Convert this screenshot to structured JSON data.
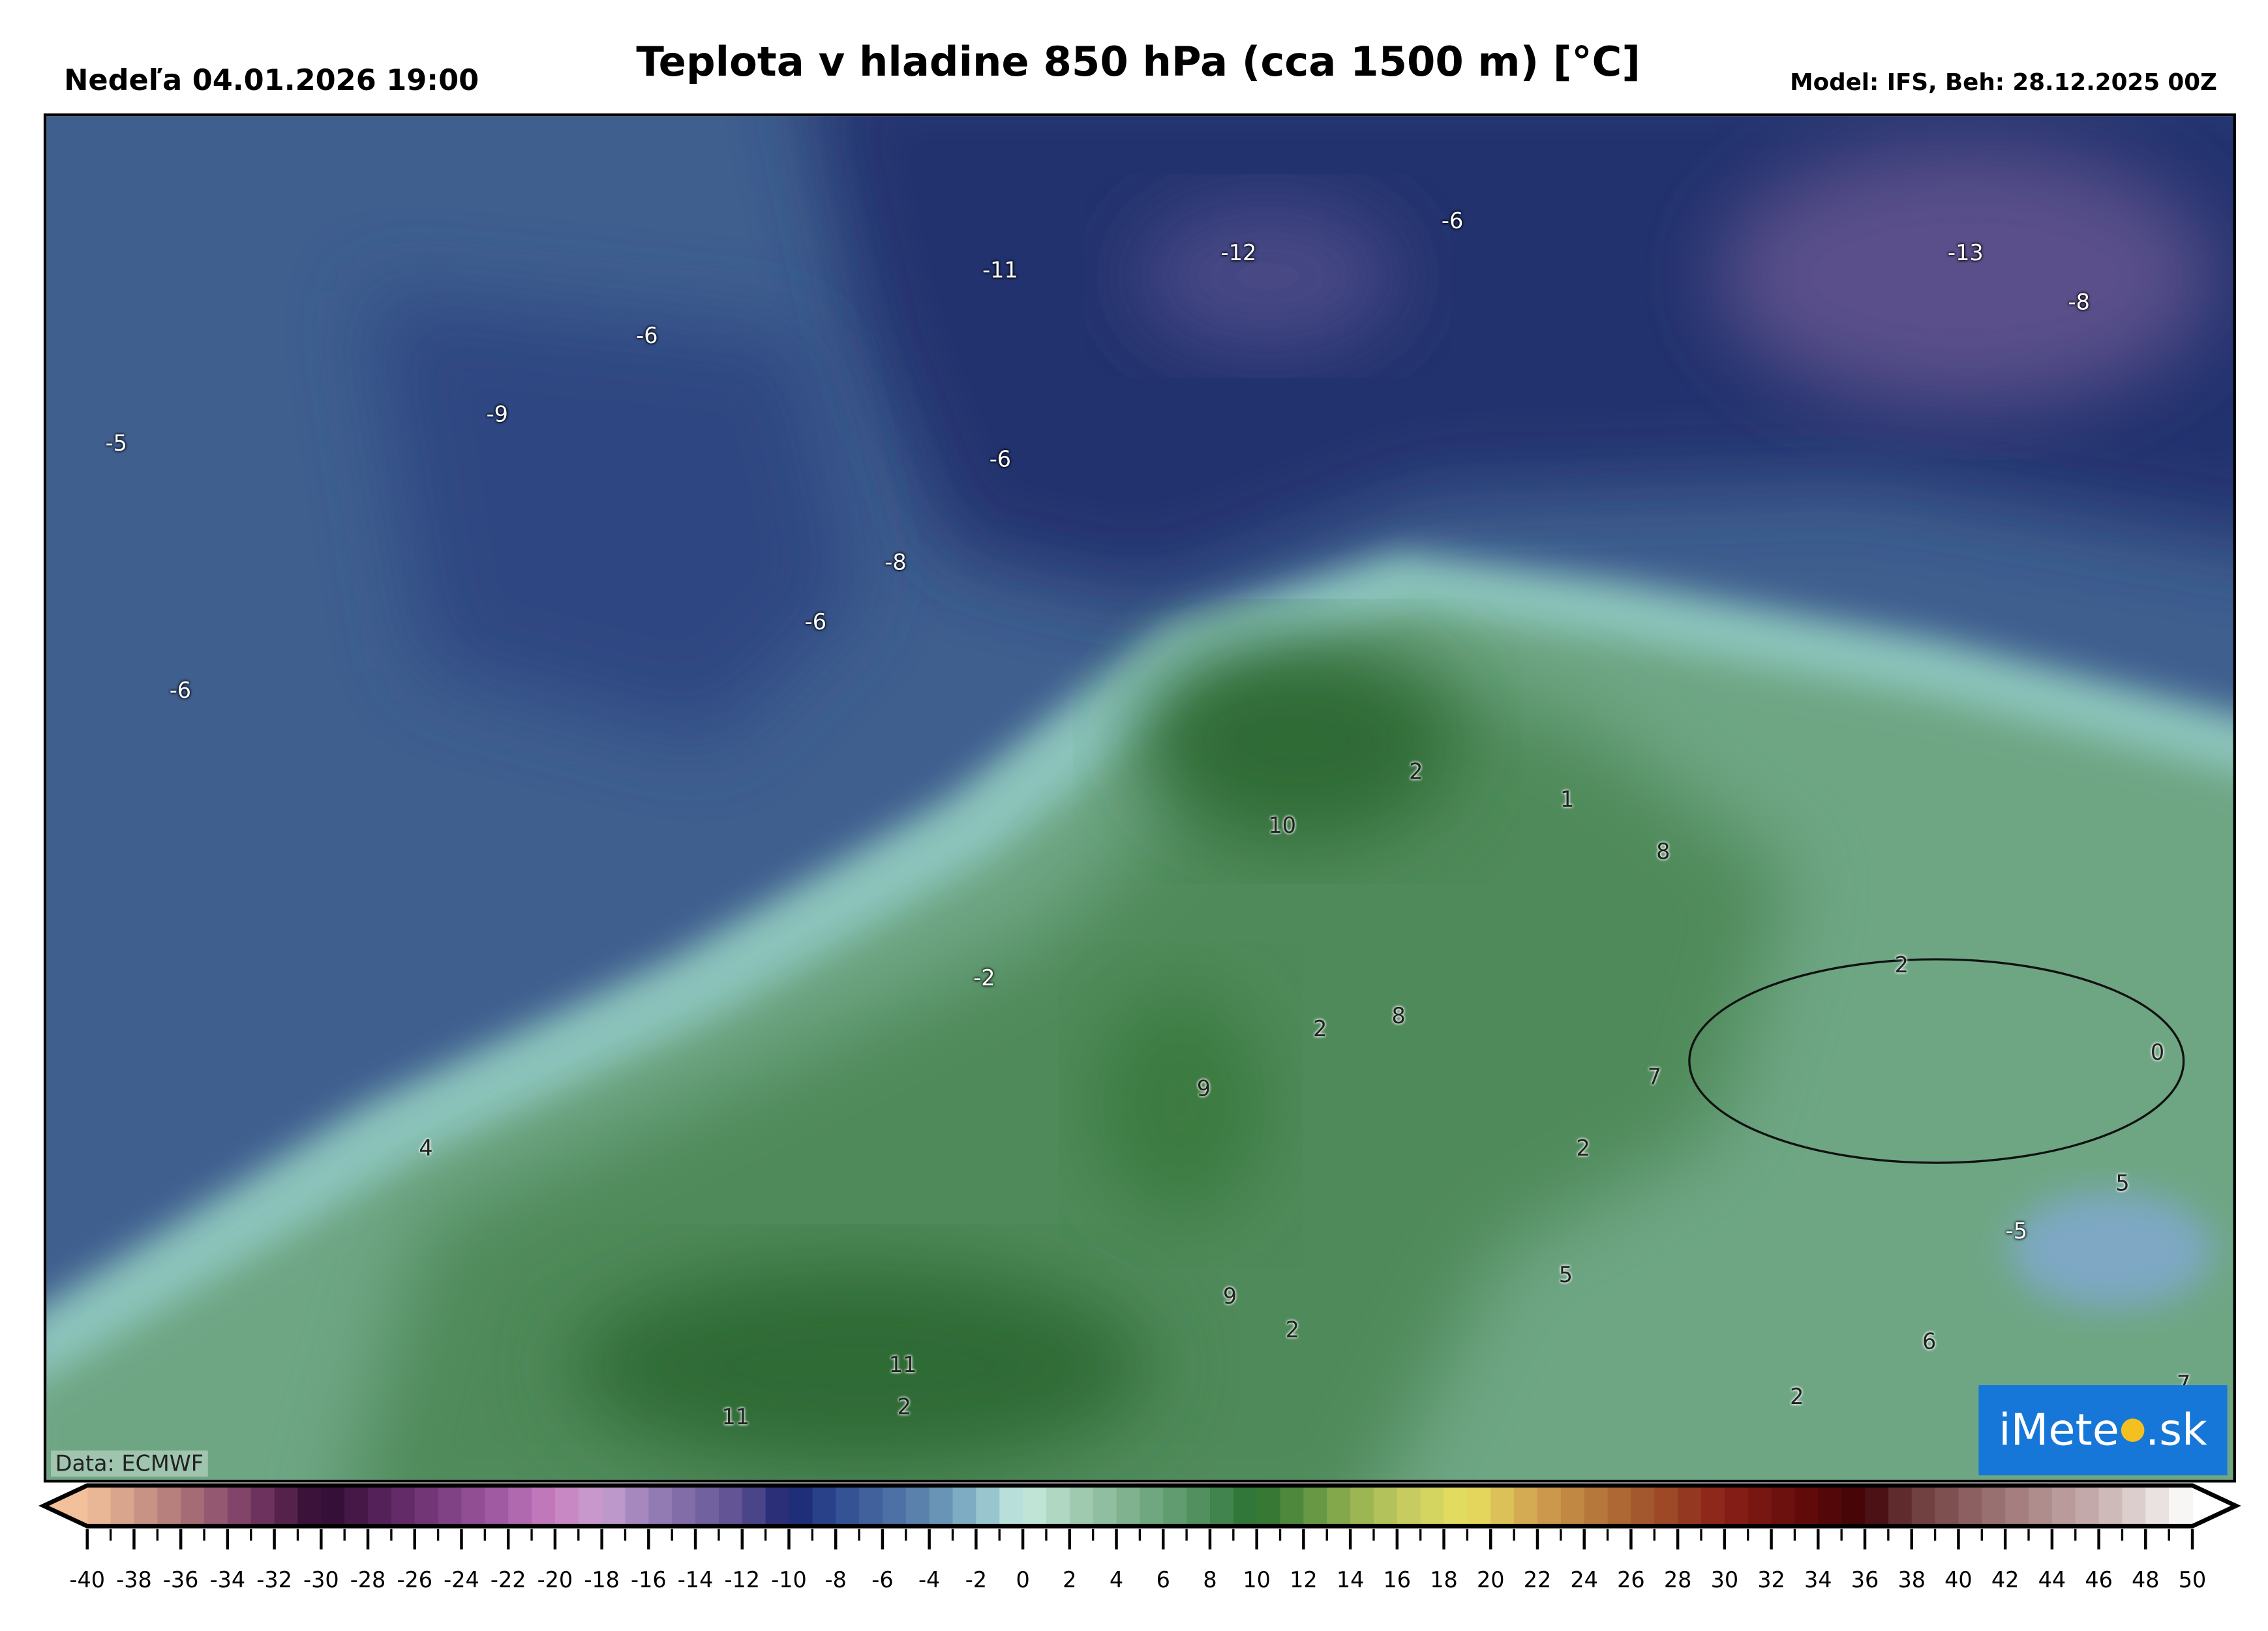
{
  "header": {
    "title": "Teplota v hladine 850 hPa (cca 1500 m) [°C]",
    "valid_time": "Nedeľa 04.01.2026 19:00",
    "model_run": "Model: IFS, Beh: 28.12.2025 00Z"
  },
  "map": {
    "source": "Data: ECMWF",
    "logo": {
      "pre": "iMete",
      "post": ".sk"
    },
    "colors": {
      "cold_navy": "#1f2d6a",
      "atlantic_blue": "#3f5f8f",
      "teal": "#8cc4bc",
      "green": "#4f8a5a",
      "dark_green": "#2f6a34",
      "purple": "#5a4f8a",
      "logo_blue": "#1677d8"
    },
    "labels": [
      {
        "text": "-5"
      },
      {
        "text": "-6"
      },
      {
        "text": "-9"
      },
      {
        "text": "-6"
      },
      {
        "text": "-11"
      },
      {
        "text": "-12"
      },
      {
        "text": "-6"
      },
      {
        "text": "-13"
      },
      {
        "text": "-8"
      },
      {
        "text": "-6"
      },
      {
        "text": "-8"
      },
      {
        "text": "-6"
      },
      {
        "text": "2"
      },
      {
        "text": "1"
      },
      {
        "text": "10"
      },
      {
        "text": "8"
      },
      {
        "text": "-2"
      },
      {
        "text": "2"
      },
      {
        "text": "2"
      },
      {
        "text": "8"
      },
      {
        "text": "0"
      },
      {
        "text": "9"
      },
      {
        "text": "7"
      },
      {
        "text": "4"
      },
      {
        "text": "2"
      },
      {
        "text": "5"
      },
      {
        "text": "-5"
      },
      {
        "text": "5"
      },
      {
        "text": "9"
      },
      {
        "text": "2"
      },
      {
        "text": "6"
      },
      {
        "text": "11"
      },
      {
        "text": "2"
      },
      {
        "text": "11"
      },
      {
        "text": "2"
      },
      {
        "text": "7"
      }
    ]
  },
  "chart_data": {
    "type": "heatmap",
    "title": "Teplota v hladine 850 hPa (cca 1500 m) [°C]",
    "colorbar": {
      "range": [
        -40,
        50
      ],
      "step": 1,
      "tick_labels": [
        "-40",
        "-38",
        "-36",
        "-34",
        "-32",
        "-30",
        "-28",
        "-26",
        "-24",
        "-22",
        "-20",
        "-18",
        "-16",
        "-14",
        "-12",
        "-10",
        "-8",
        "-6",
        "-4",
        "-2",
        "0",
        "2",
        "4",
        "6",
        "8",
        "10",
        "12",
        "14",
        "16",
        "18",
        "20",
        "22",
        "24",
        "26",
        "28",
        "30",
        "32",
        "34",
        "36",
        "38",
        "40",
        "42",
        "44",
        "46",
        "48",
        "50"
      ],
      "color_stops": [
        [
          -40,
          "#f2c09a"
        ],
        [
          -37,
          "#c08a80"
        ],
        [
          -33,
          "#7a3a66"
        ],
        [
          -30,
          "#2e0a30"
        ],
        [
          -26,
          "#6a3070"
        ],
        [
          -22,
          "#a860a8"
        ],
        [
          -20,
          "#c880c0"
        ],
        [
          -18,
          "#c8a0d0"
        ],
        [
          -16,
          "#9a80b8"
        ],
        [
          -12,
          "#5a4e90"
        ],
        [
          -10,
          "#1a2470"
        ],
        [
          -8,
          "#2e4a90"
        ],
        [
          -4,
          "#6088b0"
        ],
        [
          -2,
          "#88b8c8"
        ],
        [
          0,
          "#c8ece0"
        ],
        [
          2,
          "#a8d0b8"
        ],
        [
          4,
          "#88b898"
        ],
        [
          6,
          "#68a078"
        ],
        [
          8,
          "#4a8a58"
        ],
        [
          10,
          "#2a7030"
        ],
        [
          12,
          "#5a9040"
        ],
        [
          14,
          "#90b050"
        ],
        [
          16,
          "#c0c860"
        ],
        [
          19,
          "#e8e060"
        ],
        [
          22,
          "#d0a050"
        ],
        [
          26,
          "#a86030"
        ],
        [
          30,
          "#8a2018"
        ],
        [
          34,
          "#5a0808"
        ],
        [
          36,
          "#400408"
        ],
        [
          38,
          "#6a3838"
        ],
        [
          42,
          "#a07878"
        ],
        [
          46,
          "#c8b0b0"
        ],
        [
          50,
          "#ffffff"
        ]
      ]
    }
  }
}
